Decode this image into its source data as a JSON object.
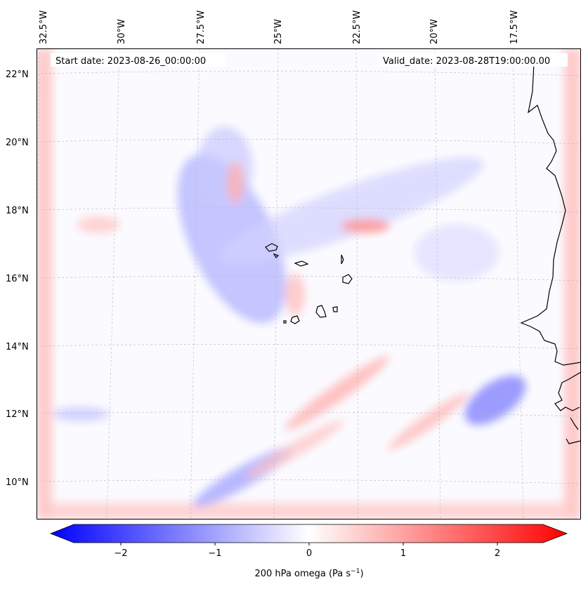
{
  "header": {
    "start_date": "Start date: 2023-08-26_00:00:00",
    "valid_date": "Valid_date: 2023-08-28T19:00:00.00"
  },
  "longitude_labels": [
    "32.5°W",
    "30°W",
    "27.5°W",
    "25°W",
    "22.5°W",
    "20°W",
    "17.5°W"
  ],
  "latitude_labels": [
    "22°N",
    "20°N",
    "18°N",
    "16°N",
    "14°N",
    "12°N",
    "10°N"
  ],
  "colorbar": {
    "tick_labels": [
      "−2",
      "−1",
      "0",
      "1",
      "2"
    ],
    "label_main": "200 hPa omega (Pa s",
    "label_sup": "−1",
    "label_close": ")",
    "min_color": "#0000ff",
    "mid_color": "#ffffff",
    "max_color": "#ff0000"
  },
  "colors": {
    "coastline": "#000000",
    "gridline": "#b0b0b0",
    "negative_omega": "#6b6bff",
    "positive_omega": "#ff8a8a"
  }
}
